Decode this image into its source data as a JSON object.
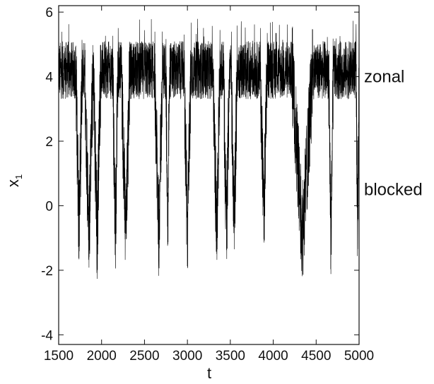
{
  "chart_data": {
    "type": "line",
    "title": "",
    "xlabel": "t",
    "ylabel_main": "x",
    "ylabel_sub": "1",
    "xlim": [
      1500,
      5000
    ],
    "ylim": [
      -4.3,
      6.2
    ],
    "x_ticks": [
      1500,
      2000,
      2500,
      3000,
      3500,
      4000,
      4500,
      5000
    ],
    "x_tick_labels": [
      "1500",
      "2000",
      "2500",
      "3000",
      "3500",
      "4000",
      "4500",
      "5000"
    ],
    "y_ticks": [
      -4,
      -2,
      0,
      2,
      4,
      6
    ],
    "y_tick_labels": [
      "-4",
      "-2",
      "0",
      "2",
      "4",
      "6"
    ],
    "grid": false,
    "series": [
      {
        "color": "#000000",
        "description_regime": {
          "zonal_level": 4.2,
          "blocked_level": 0.0
        },
        "blocked_episodes": [
          {
            "start": 1700,
            "end": 1775,
            "min": -1.8
          },
          {
            "start": 1805,
            "end": 1900,
            "min": -2.5
          },
          {
            "start": 1905,
            "end": 1990,
            "min": -2.6
          },
          {
            "start": 2130,
            "end": 2190,
            "min": -2.5
          },
          {
            "start": 2230,
            "end": 2330,
            "min": -2.1
          },
          {
            "start": 2620,
            "end": 2710,
            "min": -2.3
          },
          {
            "start": 2750,
            "end": 2790,
            "min": -2.3
          },
          {
            "start": 2960,
            "end": 3040,
            "min": -2.5
          },
          {
            "start": 3300,
            "end": 3380,
            "min": -2.3
          },
          {
            "start": 3420,
            "end": 3490,
            "min": -2.3
          },
          {
            "start": 3510,
            "end": 3580,
            "min": -2.3
          },
          {
            "start": 3850,
            "end": 3930,
            "min": -1.2
          },
          {
            "start": 4220,
            "end": 4460,
            "min": -2.4
          },
          {
            "start": 4645,
            "end": 4700,
            "min": -2.6
          },
          {
            "start": 4965,
            "end": 5000,
            "min": -1.6
          }
        ]
      }
    ],
    "annotations": [
      {
        "text": "zonal",
        "y": 4.0
      },
      {
        "text": "blocked",
        "y": 0.5
      }
    ]
  }
}
